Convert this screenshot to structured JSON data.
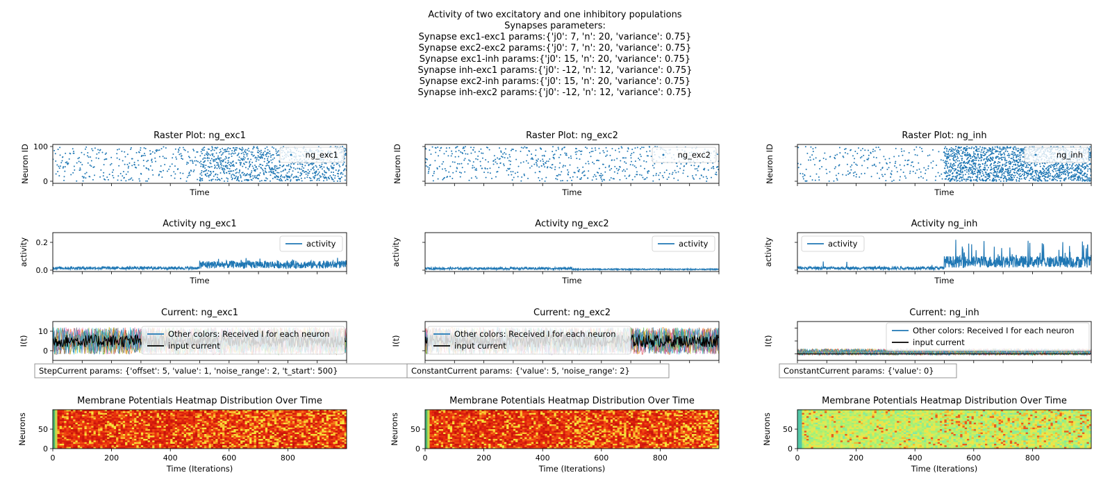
{
  "figure": {
    "title_lines": [
      "Activity of two excitatory and one inhibitory populations",
      "Synapses parameters:",
      "Synapse exc1-exc1 params:{'j0': 7, 'n': 20, 'variance': 0.75}",
      "Synapse exc2-exc2 params:{'j0': 7, 'n': 20, 'variance': 0.75}",
      "Synapse exc1-inh params:{'j0': 15, 'n': 20, 'variance': 0.75}",
      "Synapse inh-exc1 params:{'j0': -12, 'n': 12, 'variance': 0.75}",
      "Synapse exc2-inh params:{'j0': 15, 'n': 20, 'variance': 0.75}",
      "Synapse inh-exc2 params:{'j0': -12, 'n': 12, 'variance': 0.75}"
    ]
  },
  "colors": {
    "blue": "#1f77b4",
    "black": "#000000"
  },
  "chart_data": [
    {
      "type": "scatter",
      "title": "Raster Plot: ng_exc1",
      "xlabel": "Time",
      "ylabel": "Neuron ID",
      "ylim": [
        0,
        100
      ],
      "xlim": [
        0,
        1000
      ],
      "yticks": [
        "0",
        "100"
      ],
      "legend": [
        "ng_exc1"
      ],
      "legend_position": "upper right",
      "density": "low before t≈500, high after t≈500"
    },
    {
      "type": "scatter",
      "title": "Raster Plot: ng_exc2",
      "xlabel": "Time",
      "ylabel": "Neuron ID",
      "ylim": [
        0,
        100
      ],
      "xlim": [
        0,
        1000
      ],
      "legend": [
        "ng_exc2"
      ],
      "legend_position": "upper right",
      "density": "sparse throughout"
    },
    {
      "type": "scatter",
      "title": "Raster Plot: ng_inh",
      "xlabel": "Time",
      "ylabel": "Neuron ID",
      "ylim": [
        0,
        100
      ],
      "xlim": [
        0,
        1000
      ],
      "legend": [
        "ng_inh"
      ],
      "legend_position": "upper right",
      "density": "sparse before t≈500, dense after t≈500"
    },
    {
      "type": "line",
      "title": "Activity ng_exc1",
      "xlabel": "Time",
      "ylabel": "activity",
      "ylim": [
        0,
        0.25
      ],
      "yticks": [
        "0.0",
        "0.2"
      ],
      "legend": [
        "activity"
      ],
      "legend_position": "upper right",
      "levels": {
        "before_500": 0.015,
        "after_500": 0.04,
        "max": 0.1
      }
    },
    {
      "type": "line",
      "title": "Activity ng_exc2",
      "xlabel": "Time",
      "ylabel": "activity",
      "ylim": [
        0,
        0.25
      ],
      "legend": [
        "activity"
      ],
      "legend_position": "upper right",
      "levels": {
        "before_500": 0.012,
        "after_500": 0.006,
        "max": 0.03
      }
    },
    {
      "type": "line",
      "title": "Activity ng_inh",
      "xlabel": "Time",
      "ylabel": "activity",
      "ylim": [
        0,
        0.25
      ],
      "legend": [
        "activity"
      ],
      "legend_position": "upper left",
      "levels": {
        "before_500": 0.015,
        "after_500": 0.06,
        "max": 0.22
      }
    },
    {
      "type": "line",
      "title": "Current: ng_exc1",
      "ylabel": "I(t)",
      "ylim": [
        -5,
        15
      ],
      "yticks": [
        "0",
        "10"
      ],
      "legend": [
        "Other colors: Received I for each neuron",
        "input current"
      ],
      "legend_position": "center",
      "annotation": "StepCurrent params: {'offset': 5, 'value': 1, 'noise_range': 2, 't_start': 500}",
      "input_current": {
        "mean": 5,
        "noise_range": 2
      }
    },
    {
      "type": "line",
      "title": "Current: ng_exc2",
      "ylabel": "I(t)",
      "ylim": [
        -5,
        15
      ],
      "legend": [
        "Other colors: Received I for each neuron",
        "input current"
      ],
      "legend_position": "upper left",
      "annotation": "ConstantCurrent params: {'value': 5, 'noise_range': 2}",
      "input_current": {
        "mean": 5,
        "noise_range": 2
      }
    },
    {
      "type": "line",
      "title": "Current: ng_inh",
      "ylabel": "I(t)",
      "ylim": [
        -5,
        25
      ],
      "legend": [
        "Other colors: Received I for each neuron",
        "input current"
      ],
      "legend_position": "upper right",
      "annotation": "ConstantCurrent params: {'value': 0}",
      "input_current": {
        "mean": 0,
        "noise_range": 0
      }
    },
    {
      "type": "heatmap",
      "title": "Membrane Potentials Heatmap Distribution Over Time",
      "xlabel": "Time (Iterations)",
      "ylabel": "Neurons",
      "xticks": [
        "0",
        "200",
        "400",
        "600",
        "800"
      ],
      "yticks": [
        "0",
        "50"
      ],
      "xlim": [
        0,
        1000
      ],
      "ylim": [
        0,
        100
      ],
      "palette": "red"
    },
    {
      "type": "heatmap",
      "title": "Membrane Potentials Heatmap Distribution Over Time",
      "xlabel": "Time (Iterations)",
      "ylabel": "Neurons",
      "xticks": [
        "0",
        "200",
        "400",
        "600",
        "800"
      ],
      "xlim": [
        0,
        1000
      ],
      "ylim": [
        0,
        100
      ],
      "palette": "red"
    },
    {
      "type": "heatmap",
      "title": "Membrane Potentials Heatmap Distribution Over Time",
      "xlabel": "Time (Iterations)",
      "ylabel": "Neurons",
      "xticks": [
        "0",
        "200",
        "400",
        "600",
        "800"
      ],
      "xlim": [
        0,
        1000
      ],
      "ylim": [
        0,
        100
      ],
      "palette": "green"
    }
  ]
}
